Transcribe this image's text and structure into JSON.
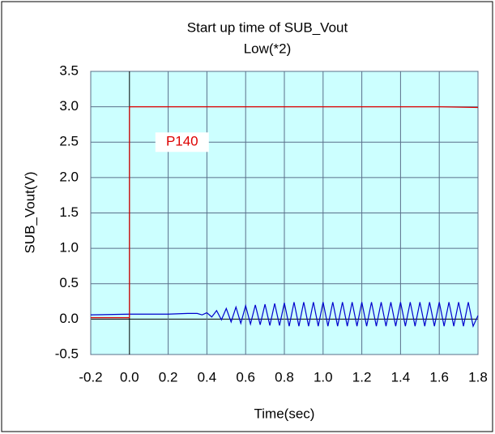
{
  "chart_data": {
    "type": "line",
    "title": "Start up time of SUB_Vout",
    "subtitle": "Low(*2)",
    "x_label": "Time(sec)",
    "y_label": "SUB_Vout(V)",
    "annotation": "P140",
    "xlim": [
      -0.2,
      1.8
    ],
    "ylim": [
      -0.5,
      3.5
    ],
    "xticks": [
      -0.2,
      {
        "value": 0,
        "label": "0.0"
      },
      0.2,
      0.4,
      0.6,
      0.8,
      {
        "value": 1,
        "label": "1.0"
      },
      1.2,
      1.4,
      1.6,
      1.8
    ],
    "yticks": [
      -0.5,
      {
        "value": 0,
        "label": "0.0"
      },
      0.5,
      {
        "value": 1,
        "label": "1.0"
      },
      1.5,
      {
        "value": 2,
        "label": "2.0"
      },
      2.5,
      {
        "value": 3,
        "label": "3.0"
      },
      3.5
    ],
    "grid": true,
    "background": "#ccffff",
    "series": [
      {
        "color": "#0000cc",
        "x": [
          -0.2,
          0,
          0.2,
          0.3,
          0.35,
          0.375,
          0.4,
          0.425,
          0.45,
          0.475,
          0.5,
          0.525,
          0.55,
          0.575,
          0.6,
          0.625,
          0.65,
          0.675,
          0.7,
          0.725,
          0.75,
          0.775,
          0.8,
          0.825,
          0.85,
          0.875,
          0.9,
          0.925,
          0.95,
          0.975,
          1,
          1.025,
          1.05,
          1.075,
          1.1,
          1.125,
          1.15,
          1.175,
          1.2,
          1.225,
          1.25,
          1.275,
          1.3,
          1.325,
          1.35,
          1.375,
          1.4,
          1.425,
          1.45,
          1.475,
          1.5,
          1.525,
          1.55,
          1.575,
          1.6,
          1.625,
          1.65,
          1.675,
          1.7,
          1.725,
          1.75,
          1.775,
          1.8
        ],
        "values": [
          0.06,
          0.07,
          0.07,
          0.08,
          0.08,
          0.06,
          0.09,
          0.03,
          0.12,
          -0.01,
          0.15,
          -0.04,
          0.17,
          -0.06,
          0.19,
          -0.07,
          0.2,
          -0.08,
          0.21,
          -0.09,
          0.22,
          -0.09,
          0.23,
          -0.1,
          0.24,
          -0.1,
          0.24,
          -0.1,
          0.24,
          -0.1,
          0.24,
          -0.1,
          0.24,
          -0.1,
          0.24,
          -0.1,
          0.24,
          -0.1,
          0.24,
          -0.1,
          0.24,
          -0.1,
          0.24,
          -0.1,
          0.24,
          -0.1,
          0.24,
          -0.1,
          0.24,
          -0.1,
          0.24,
          -0.1,
          0.24,
          -0.1,
          0.24,
          -0.1,
          0.24,
          -0.1,
          0.24,
          -0.1,
          0.24,
          -0.1,
          0.05
        ]
      },
      {
        "color": "#dd0000",
        "x": [
          -0.2,
          0,
          0,
          0.4,
          0.8,
          1.2,
          1.6,
          1.8
        ],
        "values": [
          0.02,
          0.02,
          3.0,
          3.0,
          3.0,
          3.0,
          3.0,
          2.99
        ]
      }
    ]
  }
}
